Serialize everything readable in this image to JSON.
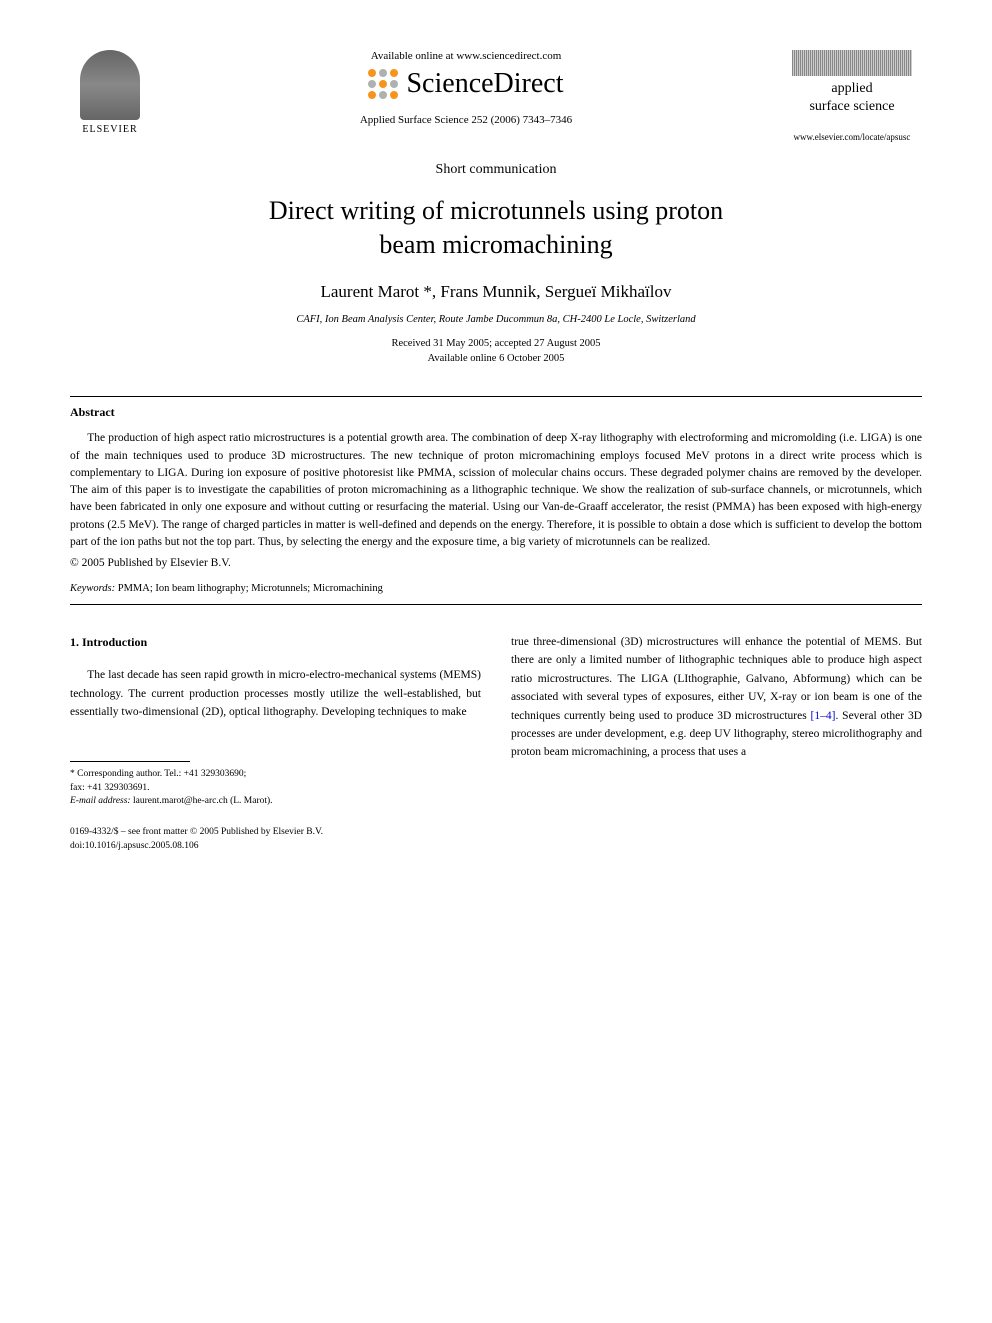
{
  "header": {
    "publisher": "ELSEVIER",
    "available_online": "Available online at www.sciencedirect.com",
    "sciencedirect": "ScienceDirect",
    "sd_dot_colors": [
      "#f7941d",
      "#b0b0b0",
      "#f7941d",
      "#b0b0b0",
      "#f7941d",
      "#b0b0b0",
      "#f7941d",
      "#b0b0b0",
      "#f7941d"
    ],
    "journal_ref": "Applied Surface Science 252 (2006) 7343–7346",
    "journal_name_line1": "applied",
    "journal_name_line2": "surface science",
    "journal_url": "www.elsevier.com/locate/apsusc"
  },
  "article": {
    "type": "Short communication",
    "title_line1": "Direct writing of microtunnels using proton",
    "title_line2": "beam micromachining",
    "authors": "Laurent Marot *, Frans Munnik, Sergueï Mikhaïlov",
    "affiliation": "CAFI, Ion Beam Analysis Center, Route Jambe Ducommun 8a, CH-2400 Le Locle, Switzerland",
    "received": "Received 31 May 2005; accepted 27 August 2005",
    "available": "Available online 6 October 2005"
  },
  "abstract": {
    "heading": "Abstract",
    "text": "The production of high aspect ratio microstructures is a potential growth area. The combination of deep X-ray lithography with electroforming and micromolding (i.e. LIGA) is one of the main techniques used to produce 3D microstructures. The new technique of proton micromachining employs focused MeV protons in a direct write process which is complementary to LIGA. During ion exposure of positive photoresist like PMMA, scission of molecular chains occurs. These degraded polymer chains are removed by the developer. The aim of this paper is to investigate the capabilities of proton micromachining as a lithographic technique. We show the realization of sub-surface channels, or microtunnels, which have been fabricated in only one exposure and without cutting or resurfacing the material. Using our Van-de-Graaff accelerator, the resist (PMMA) has been exposed with high-energy protons (2.5 MeV). The range of charged particles in matter is well-defined and depends on the energy. Therefore, it is possible to obtain a dose which is sufficient to develop the bottom part of the ion paths but not the top part. Thus, by selecting the energy and the exposure time, a big variety of microtunnels can be realized.",
    "copyright": "© 2005 Published by Elsevier B.V.",
    "keywords_label": "Keywords:",
    "keywords": " PMMA; Ion beam lithography; Microtunnels; Micromachining"
  },
  "body": {
    "section_num": "1.",
    "section_title": "Introduction",
    "col1": "The last decade has seen rapid growth in micro-electro-mechanical systems (MEMS) technology. The current production processes mostly utilize the well-established, but essentially two-dimensional (2D), optical lithography. Developing techniques to make",
    "col2_part1": "true three-dimensional (3D) microstructures will enhance the potential of MEMS. But there are only a limited number of lithographic techniques able to produce high aspect ratio microstructures. The LIGA (LIthographie, Galvano, Abformung) which can be associated with several types of exposures, either UV, X-ray or ion beam is one of the techniques currently being used to produce 3D microstructures ",
    "ref1": "[1–4]",
    "col2_part2": ". Several other 3D processes are under development, e.g. deep UV lithography, stereo microlithography and proton beam micromachining, a process that uses a"
  },
  "footnotes": {
    "corresponding": "* Corresponding author. Tel.: +41 329303690;",
    "fax": "fax: +41 329303691.",
    "email_label": "E-mail address:",
    "email": " laurent.marot@he-arc.ch (L. Marot).",
    "issn": "0169-4332/$ – see front matter © 2005 Published by Elsevier B.V.",
    "doi": "doi:10.1016/j.apsusc.2005.08.106"
  }
}
